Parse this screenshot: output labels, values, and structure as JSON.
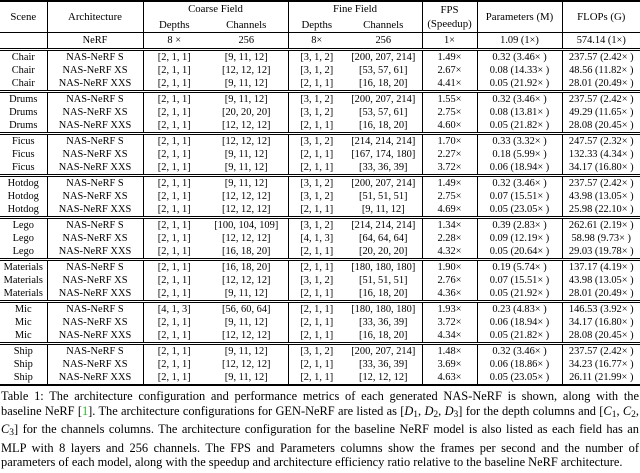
{
  "table": {
    "header": {
      "scene": "Scene",
      "architecture": "Architecture",
      "coarse_field": "Coarse Field",
      "fine_field": "Fine Field",
      "depths": "Depths",
      "channels": "Channels",
      "fps_line1": "FPS",
      "fps_line2": "(Speedup)",
      "parameters": "Parameters (M)",
      "flops": "FLOPs (G)"
    },
    "baseline": {
      "scene": "",
      "architecture": "NeRF",
      "coarse_depths": "8 ×",
      "coarse_channels": "256",
      "fine_depths": "8×",
      "fine_channels": "256",
      "fps": "1×",
      "parameters": "1.09 (1×)",
      "flops": "574.14 (1×)"
    },
    "groups": [
      {
        "scene": "Chair",
        "rows": [
          {
            "architecture": "NAS-NeRF S",
            "coarse_depths": "[2, 1, 1]",
            "coarse_channels": "[9, 11, 12]",
            "fine_depths": "[3, 1, 2]",
            "fine_channels": "[200, 207, 214]",
            "fps": "1.49×",
            "parameters": "0.32 (3.46× )",
            "flops": "237.57 (2.42× )"
          },
          {
            "architecture": "NAS-NeRF XS",
            "coarse_depths": "[2, 1, 1]",
            "coarse_channels": "[12, 12, 12]",
            "fine_depths": "[3, 1, 2]",
            "fine_channels": "[53, 57, 61]",
            "fps": "2.67×",
            "parameters": "0.08 (14.33× )",
            "flops": "48.56 (11.82× )"
          },
          {
            "architecture": "NAS-NeRF XXS",
            "coarse_depths": "[2, 1, 1]",
            "coarse_channels": "[9, 11, 12]",
            "fine_depths": "[2, 1, 1]",
            "fine_channels": "[16, 18, 20]",
            "fps": "4.41×",
            "parameters": "0.05 (21.92× )",
            "flops": "28.01 (20.49× )"
          }
        ]
      },
      {
        "scene": "Drums",
        "rows": [
          {
            "architecture": "NAS-NeRF S",
            "coarse_depths": "[2, 1, 1]",
            "coarse_channels": "[9, 11, 12]",
            "fine_depths": "[3, 1, 2]",
            "fine_channels": "[200, 207, 214]",
            "fps": "1.55×",
            "parameters": "0.32 (3.46× )",
            "flops": "237.57 (2.42× )"
          },
          {
            "architecture": "NAS-NeRF XS",
            "coarse_depths": "[2, 1, 1]",
            "coarse_channels": "[20, 20, 20]",
            "fine_depths": "[3, 1, 2]",
            "fine_channels": "[53, 57, 61]",
            "fps": "2.75×",
            "parameters": "0.08 (13.81× )",
            "flops": "49.29 (11.65× )"
          },
          {
            "architecture": "NAS-NeRF XXS",
            "coarse_depths": "[2, 1, 1]",
            "coarse_channels": "[12, 12, 12]",
            "fine_depths": "[2, 1, 1]",
            "fine_channels": "[16, 18, 20]",
            "fps": "4.60×",
            "parameters": "0.05 (21.82× )",
            "flops": "28.08 (20.45× )"
          }
        ]
      },
      {
        "scene": "Ficus",
        "rows": [
          {
            "architecture": "NAS-NeRF S",
            "coarse_depths": "[2, 1, 1]",
            "coarse_channels": "[12, 12, 12]",
            "fine_depths": "[3, 1, 2]",
            "fine_channels": "[214, 214, 214]",
            "fps": "1.70×",
            "parameters": "0.33 (3.32× )",
            "flops": "247.57 (2.32× )"
          },
          {
            "architecture": "NAS-NeRF XS",
            "coarse_depths": "[2, 1, 1]",
            "coarse_channels": "[9, 11, 12]",
            "fine_depths": "[2, 1, 1]",
            "fine_channels": "[167, 174, 180]",
            "fps": "2.27×",
            "parameters": "0.18 (5.99× )",
            "flops": "132.33 (4.34× )"
          },
          {
            "architecture": "NAS-NeRF XXS",
            "coarse_depths": "[2, 1, 1]",
            "coarse_channels": "[9, 11, 12]",
            "fine_depths": "[2, 1, 1]",
            "fine_channels": "[33, 36, 39]",
            "fps": "3.72×",
            "parameters": "0.06 (18.94× )",
            "flops": "34.17 (16.80× )"
          }
        ]
      },
      {
        "scene": "Hotdog",
        "rows": [
          {
            "architecture": "NAS-NeRF S",
            "coarse_depths": "[2, 1, 1]",
            "coarse_channels": "[9, 11, 12]",
            "fine_depths": "[3, 1, 2]",
            "fine_channels": "[200, 207, 214]",
            "fps": "1.49×",
            "parameters": "0.32 (3.46× )",
            "flops": "237.57 (2.42× )"
          },
          {
            "architecture": "NAS-NeRF XS",
            "coarse_depths": "[2, 1, 1]",
            "coarse_channels": "[12, 12, 12]",
            "fine_depths": "[3, 1, 2]",
            "fine_channels": "[51, 51, 51]",
            "fps": "2.75×",
            "parameters": "0.07 (15.51× )",
            "flops": "43.98 (13.05× )"
          },
          {
            "architecture": "NAS-NeRF XXS",
            "coarse_depths": "[2, 1, 1]",
            "coarse_channels": "[12, 12, 12]",
            "fine_depths": "[2, 1, 1]",
            "fine_channels": "[9, 11, 12]",
            "fps": "4.69×",
            "parameters": "0.05 (23.05× )",
            "flops": "25.98 (22.10× )"
          }
        ]
      },
      {
        "scene": "Lego",
        "rows": [
          {
            "architecture": "NAS-NeRF S",
            "coarse_depths": "[2, 1, 1]",
            "coarse_channels": "[100, 104, 109]",
            "fine_depths": "[3, 1, 2]",
            "fine_channels": "[214, 214, 214]",
            "fps": "1.34×",
            "parameters": "0.39 (2.83× )",
            "flops": "262.61 (2.19× )"
          },
          {
            "architecture": "NAS-NeRF XS",
            "coarse_depths": "[2, 1, 1]",
            "coarse_channels": "[12, 12, 12]",
            "fine_depths": "[4, 1, 3]",
            "fine_channels": "[64, 64, 64]",
            "fps": "2.28×",
            "parameters": "0.09 (12.19× )",
            "flops": "58.98 (9.73× )"
          },
          {
            "architecture": "NAS-NeRF XXS",
            "coarse_depths": "[2, 1, 1]",
            "coarse_channels": "[16, 18, 20]",
            "fine_depths": "[2, 1, 1]",
            "fine_channels": "[20, 20, 20]",
            "fps": "4.32×",
            "parameters": "0.05 (20.64× )",
            "flops": "29.03 (19.78× )"
          }
        ]
      },
      {
        "scene": "Materials",
        "rows": [
          {
            "architecture": "NAS-NeRF S",
            "coarse_depths": "[2, 1, 1]",
            "coarse_channels": "[16, 18, 20]",
            "fine_depths": "[2, 1, 1]",
            "fine_channels": "[180, 180, 180]",
            "fps": "1.90×",
            "parameters": "0.19 (5.74× )",
            "flops": "137.17 (4.19× )"
          },
          {
            "architecture": "NAS-NeRF XS",
            "coarse_depths": "[2, 1, 1]",
            "coarse_channels": "[12, 12, 12]",
            "fine_depths": "[3, 1, 2]",
            "fine_channels": "[51, 51, 51]",
            "fps": "2.76×",
            "parameters": "0.07 (15.51× )",
            "flops": "43.98 (13.05× )"
          },
          {
            "architecture": "NAS-NeRF XXS",
            "coarse_depths": "[2, 1, 1]",
            "coarse_channels": "[9, 11, 12]",
            "fine_depths": "[2, 1, 1]",
            "fine_channels": "[16, 18, 20]",
            "fps": "4.36×",
            "parameters": "0.05 (21.92× )",
            "flops": "28.01 (20.49× )"
          }
        ]
      },
      {
        "scene": "Mic",
        "rows": [
          {
            "architecture": "NAS-NeRF S",
            "coarse_depths": "[4, 1, 3]",
            "coarse_channels": "[56, 60, 64]",
            "fine_depths": "[2, 1, 1]",
            "fine_channels": "[180, 180, 180]",
            "fps": "1.93×",
            "parameters": "0.23 (4.83× )",
            "flops": "146.53 (3.92× )"
          },
          {
            "architecture": "NAS-NeRF XS",
            "coarse_depths": "[2, 1, 1]",
            "coarse_channels": "[9, 11, 12]",
            "fine_depths": "[2, 1, 1]",
            "fine_channels": "[33, 36, 39]",
            "fps": "3.72×",
            "parameters": "0.06 (18.94× )",
            "flops": "34.17 (16.80× )"
          },
          {
            "architecture": "NAS-NeRF XXS",
            "coarse_depths": "[2, 1, 1]",
            "coarse_channels": "[12, 12, 12]",
            "fine_depths": "[2, 1, 1]",
            "fine_channels": "[16, 18, 20]",
            "fps": "4.34×",
            "parameters": "0.05 (21.82× )",
            "flops": "28.08 (20.45× )"
          }
        ]
      },
      {
        "scene": "Ship",
        "rows": [
          {
            "architecture": "NAS-NeRF S",
            "coarse_depths": "[2, 1, 1]",
            "coarse_channels": "[9, 11, 12]",
            "fine_depths": "[3, 1, 2]",
            "fine_channels": "[200, 207, 214]",
            "fps": "1.48×",
            "parameters": "0.32 (3.46× )",
            "flops": "237.57 (2.42× )"
          },
          {
            "architecture": "NAS-NeRF XS",
            "coarse_depths": "[2, 1, 1]",
            "coarse_channels": "[12, 12, 12]",
            "fine_depths": "[2, 1, 1]",
            "fine_channels": "[33, 36, 39]",
            "fps": "3.69×",
            "parameters": "0.06 (18.86× )",
            "flops": "34.23 (16.77× )"
          },
          {
            "architecture": "NAS-NeRF XXS",
            "coarse_depths": "[2, 1, 1]",
            "coarse_channels": "[9, 11, 12]",
            "fine_depths": "[2, 1, 1]",
            "fine_channels": "[12, 12, 12]",
            "fps": "4.63×",
            "parameters": "0.05 (23.05× )",
            "flops": "26.11 (21.99× )"
          }
        ]
      }
    ]
  },
  "caption": {
    "segments": [
      {
        "style": "normal",
        "text": "Table 1: The architecture configuration and performance metrics of each generated NAS-NeRF is shown, along with the baseline NeRF ["
      },
      {
        "style": "cite",
        "text": "1"
      },
      {
        "style": "normal",
        "text": "]. The architecture configurations for GEN-NeRF are listed as ["
      },
      {
        "style": "math",
        "text": "D"
      },
      {
        "style": "msub",
        "text": "1"
      },
      {
        "style": "normal",
        "text": ", "
      },
      {
        "style": "math",
        "text": "D"
      },
      {
        "style": "msub",
        "text": "2"
      },
      {
        "style": "normal",
        "text": ", "
      },
      {
        "style": "math",
        "text": "D"
      },
      {
        "style": "msub",
        "text": "3"
      },
      {
        "style": "normal",
        "text": "] for the depth columns and ["
      },
      {
        "style": "math",
        "text": "C"
      },
      {
        "style": "msub",
        "text": "1"
      },
      {
        "style": "normal",
        "text": ", "
      },
      {
        "style": "math",
        "text": "C"
      },
      {
        "style": "msub",
        "text": "2"
      },
      {
        "style": "normal",
        "text": ", "
      },
      {
        "style": "math",
        "text": "C"
      },
      {
        "style": "msub",
        "text": "3"
      },
      {
        "style": "normal",
        "text": "] for the channels columns. The architecture configuration for the baseline NeRF model is also listed as each field has an MLP with 8 layers and 256 channels. The FPS and Parameters columns show the frames per second and the number of parameters of each model, along with the speedup and architecture efficiency ratio relative to the baseline NeRF architecture."
      }
    ]
  }
}
